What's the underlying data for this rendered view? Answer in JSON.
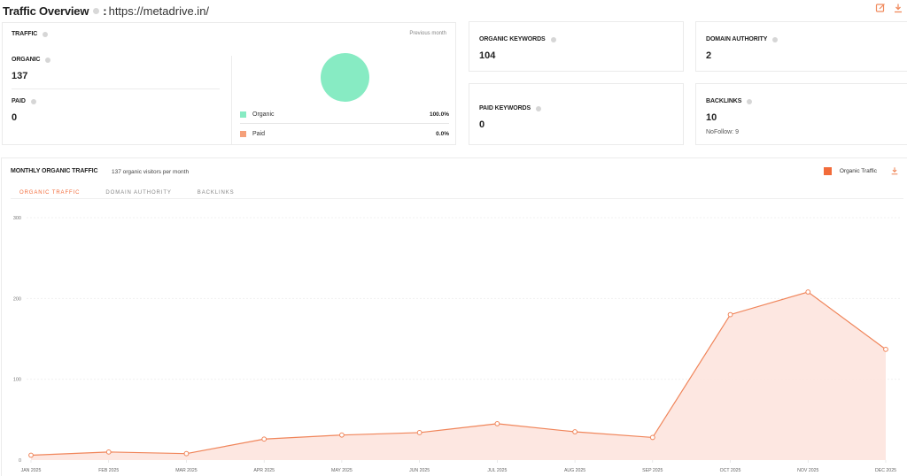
{
  "header": {
    "title": "Traffic Overview",
    "separator": ":",
    "url": "https://metadrive.in/",
    "actions": [
      {
        "icon": "edit-icon"
      },
      {
        "icon": "download-icon"
      }
    ]
  },
  "traffic": {
    "label": "TRAFFIC",
    "period": "Previous month",
    "organic_label": "ORGANIC",
    "organic_value": "137",
    "paid_label": "PAID",
    "paid_value": "0",
    "legend": [
      {
        "name": "Organic",
        "percent": "100.0%",
        "color": "#87ebc3"
      },
      {
        "name": "Paid",
        "percent": "0.0%",
        "color": "#f5a07a"
      }
    ]
  },
  "organic_keywords": {
    "label": "ORGANIC KEYWORDS",
    "value": "104"
  },
  "paid_keywords": {
    "label": "PAID KEYWORDS",
    "value": "0"
  },
  "domain_authority": {
    "label": "DOMAIN AUTHORITY",
    "value": "2"
  },
  "backlinks": {
    "label": "BACKLINKS",
    "value": "10",
    "nofollow": "NoFollow: 9"
  },
  "monthly": {
    "title": "MONTHLY ORGANIC TRAFFIC",
    "subtitle": "137 organic visitors per month",
    "legend_label": "Organic Traffic",
    "tabs": [
      {
        "label": "ORGANIC TRAFFIC",
        "active": true
      },
      {
        "label": "DOMAIN AUTHORITY",
        "active": false
      },
      {
        "label": "BACKLINKS",
        "active": false
      }
    ]
  },
  "colors": {
    "accent": "#f26b3a",
    "line": "#f0855a",
    "area": "#fde3dc",
    "organic": "#87ebc3",
    "paid": "#f5a07a"
  },
  "chart_data": {
    "type": "area",
    "title": "Monthly Organic Traffic",
    "categories": [
      "JAN 2025",
      "FEB 2025",
      "MAR 2025",
      "APR 2025",
      "MAY 2025",
      "JUN 2025",
      "JUL 2025",
      "AUG 2025",
      "SEP 2025",
      "OCT 2025",
      "NOV 2025",
      "DEC 2025"
    ],
    "series": [
      {
        "name": "Organic Traffic",
        "values": [
          6,
          10,
          8,
          26,
          31,
          34,
          45,
          35,
          28,
          180,
          208,
          137
        ]
      }
    ],
    "yticks": [
      0,
      100,
      200,
      300
    ],
    "ylim": [
      0,
      300
    ],
    "grid": true,
    "legend_position": "top-right"
  }
}
